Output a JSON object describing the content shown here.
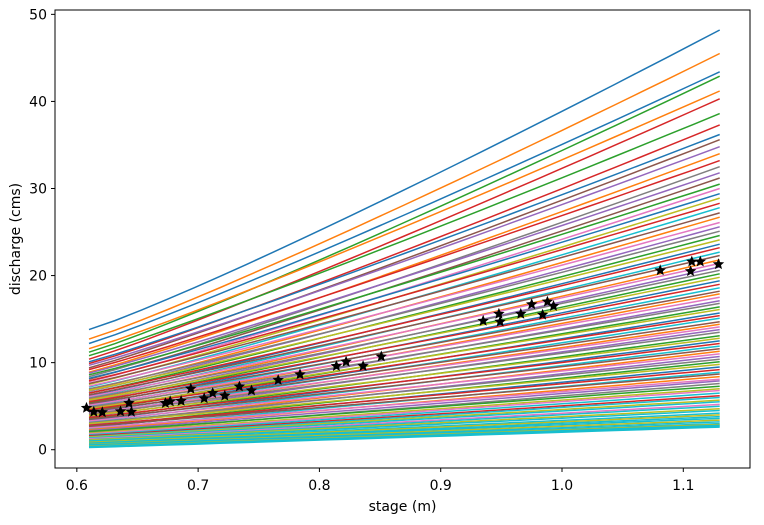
{
  "figure": {
    "xlabel": "stage (m)",
    "ylabel": "discharge (cms)",
    "background": "#ffffff"
  },
  "chart_data": {
    "type": "line",
    "title": "",
    "xlabel": "stage (m)",
    "ylabel": "discharge (cms)",
    "xlim": [
      0.582,
      1.155
    ],
    "ylim": [
      -2.1,
      50.5
    ],
    "x_ticks": [
      "0.6",
      "0.7",
      "0.8",
      "0.9",
      "1.0",
      "1.1"
    ],
    "x_tick_values": [
      0.6,
      0.7,
      0.8,
      0.9,
      1.0,
      1.1
    ],
    "y_ticks": [
      "0",
      "10",
      "20",
      "30",
      "40",
      "50"
    ],
    "y_tick_values": [
      0,
      10,
      20,
      30,
      40,
      50
    ],
    "grid": false,
    "legend": "none",
    "box": true,
    "line_width": 1.5,
    "palette": [
      "#1f77b4",
      "#ff7f0e",
      "#2ca02c",
      "#d62728",
      "#9467bd",
      "#8c564b",
      "#e377c2",
      "#7f7f7f",
      "#bcbd22",
      "#17becf"
    ],
    "curve_x_range": [
      0.61,
      1.13
    ],
    "curves_format": [
      "q_at_stage_0.61",
      "q_at_stage_1.13",
      "bend_exponent",
      "color_index"
    ],
    "curves": [
      [
        13.8,
        48.2,
        1.1,
        0
      ],
      [
        12.7,
        45.5,
        1.09,
        1
      ],
      [
        12.2,
        43.4,
        1.08,
        0
      ],
      [
        11.2,
        42.9,
        1.09,
        2
      ],
      [
        11.6,
        41.2,
        1.08,
        1
      ],
      [
        10.4,
        40.3,
        1.08,
        3
      ],
      [
        10.8,
        38.6,
        1.07,
        2
      ],
      [
        9.9,
        37.3,
        1.08,
        3
      ],
      [
        10.1,
        36.2,
        1.07,
        0
      ],
      [
        9.4,
        35.6,
        1.07,
        5
      ],
      [
        9.7,
        34.8,
        1.07,
        4
      ],
      [
        8.9,
        34.0,
        1.07,
        1
      ],
      [
        9.2,
        33.2,
        1.06,
        3
      ],
      [
        8.4,
        32.5,
        1.07,
        7
      ],
      [
        8.8,
        31.8,
        1.06,
        4
      ],
      [
        8.1,
        31.2,
        1.06,
        5
      ],
      [
        8.6,
        30.5,
        1.06,
        2
      ],
      [
        7.8,
        30.0,
        1.06,
        6
      ],
      [
        8.2,
        29.4,
        1.06,
        0
      ],
      [
        7.5,
        28.9,
        1.06,
        8
      ],
      [
        7.9,
        28.3,
        1.05,
        3
      ],
      [
        7.2,
        27.8,
        1.06,
        9
      ],
      [
        7.6,
        27.2,
        1.05,
        5
      ],
      [
        6.9,
        26.7,
        1.06,
        1
      ],
      [
        7.3,
        26.1,
        1.05,
        6
      ],
      [
        6.7,
        25.6,
        1.05,
        4
      ],
      [
        7.0,
        25.1,
        1.05,
        7
      ],
      [
        6.5,
        24.6,
        1.05,
        2
      ],
      [
        6.8,
        24.1,
        1.05,
        8
      ],
      [
        6.2,
        23.6,
        1.05,
        0
      ],
      [
        6.5,
        23.2,
        1.05,
        3
      ],
      [
        6.0,
        22.7,
        1.05,
        9
      ],
      [
        6.3,
        22.3,
        1.04,
        5
      ],
      [
        5.8,
        21.8,
        1.05,
        1
      ],
      [
        6.1,
        21.4,
        1.04,
        6
      ],
      [
        5.6,
        21.0,
        1.05,
        4
      ],
      [
        5.9,
        20.6,
        1.04,
        7
      ],
      [
        5.4,
        20.2,
        1.04,
        2
      ],
      [
        5.7,
        19.8,
        1.04,
        8
      ],
      [
        5.2,
        19.4,
        1.04,
        0
      ],
      [
        5.5,
        19.0,
        1.04,
        3
      ],
      [
        5.0,
        18.6,
        1.04,
        9
      ],
      [
        5.3,
        18.2,
        1.04,
        5
      ],
      [
        4.8,
        17.9,
        1.04,
        1
      ],
      [
        5.1,
        17.5,
        1.04,
        6
      ],
      [
        4.6,
        17.1,
        1.04,
        4
      ],
      [
        4.9,
        16.8,
        1.03,
        7
      ],
      [
        4.5,
        16.4,
        1.04,
        2
      ],
      [
        4.7,
        16.1,
        1.03,
        8
      ],
      [
        4.3,
        15.7,
        1.04,
        0
      ],
      [
        4.6,
        15.4,
        1.03,
        3
      ],
      [
        4.1,
        15.1,
        1.03,
        9
      ],
      [
        4.4,
        14.7,
        1.03,
        5
      ],
      [
        4.0,
        14.4,
        1.03,
        1
      ],
      [
        4.2,
        14.1,
        1.03,
        6
      ],
      [
        3.8,
        13.8,
        1.03,
        4
      ],
      [
        4.1,
        13.5,
        1.03,
        7
      ],
      [
        3.6,
        13.1,
        1.03,
        2
      ],
      [
        3.9,
        12.8,
        1.03,
        8
      ],
      [
        3.4,
        12.5,
        1.03,
        0
      ],
      [
        3.7,
        12.2,
        1.03,
        3
      ],
      [
        3.2,
        11.9,
        1.03,
        9
      ],
      [
        3.5,
        11.6,
        1.02,
        5
      ],
      [
        3.0,
        11.3,
        1.03,
        1
      ],
      [
        3.3,
        11.0,
        1.02,
        6
      ],
      [
        2.9,
        10.7,
        1.02,
        4
      ],
      [
        3.1,
        10.4,
        1.02,
        7
      ],
      [
        2.7,
        10.1,
        1.02,
        2
      ],
      [
        3.0,
        9.8,
        1.02,
        8
      ],
      [
        2.6,
        9.5,
        1.02,
        0
      ],
      [
        2.8,
        9.2,
        1.02,
        3
      ],
      [
        2.4,
        8.9,
        1.02,
        9
      ],
      [
        2.7,
        8.7,
        1.02,
        5
      ],
      [
        2.3,
        8.4,
        1.02,
        1
      ],
      [
        2.5,
        8.1,
        1.02,
        6
      ],
      [
        2.2,
        7.9,
        1.02,
        4
      ],
      [
        2.0,
        7.6,
        1.02,
        7
      ],
      [
        2.1,
        7.3,
        1.02,
        2
      ],
      [
        1.9,
        7.0,
        1.02,
        8
      ],
      [
        1.8,
        6.8,
        1.02,
        6
      ],
      [
        1.7,
        6.5,
        1.02,
        9
      ],
      [
        1.6,
        6.2,
        1.02,
        3
      ],
      [
        1.5,
        6.0,
        1.02,
        9
      ],
      [
        1.45,
        5.7,
        1.02,
        8
      ],
      [
        1.35,
        5.5,
        1.02,
        9
      ],
      [
        1.25,
        5.2,
        1.02,
        6
      ],
      [
        1.15,
        5.0,
        1.02,
        9
      ],
      [
        1.1,
        4.7,
        1.01,
        8
      ],
      [
        1.0,
        4.5,
        1.01,
        9
      ],
      [
        0.9,
        4.2,
        1.01,
        9
      ],
      [
        0.85,
        4.0,
        1.01,
        8
      ],
      [
        0.75,
        3.8,
        1.01,
        9
      ],
      [
        0.7,
        3.6,
        1.01,
        9
      ],
      [
        0.6,
        3.4,
        1.01,
        8
      ],
      [
        0.55,
        3.2,
        1.01,
        9
      ],
      [
        0.5,
        3.0,
        1.01,
        9
      ],
      [
        0.4,
        2.9,
        1.01,
        8
      ],
      [
        0.35,
        2.8,
        1.01,
        9
      ],
      [
        0.3,
        2.7,
        1.01,
        9
      ],
      [
        0.25,
        2.6,
        1.01,
        9
      ]
    ],
    "observations": {
      "marker": "star",
      "color": "#000000",
      "points": [
        [
          0.608,
          4.8
        ],
        [
          0.614,
          4.35
        ],
        [
          0.621,
          4.3
        ],
        [
          0.636,
          4.4
        ],
        [
          0.643,
          5.35
        ],
        [
          0.645,
          4.35
        ],
        [
          0.673,
          5.35
        ],
        [
          0.677,
          5.55
        ],
        [
          0.686,
          5.6
        ],
        [
          0.694,
          7.0
        ],
        [
          0.705,
          5.9
        ],
        [
          0.712,
          6.5
        ],
        [
          0.722,
          6.2
        ],
        [
          0.734,
          7.25
        ],
        [
          0.744,
          6.8
        ],
        [
          0.766,
          8.0
        ],
        [
          0.784,
          8.65
        ],
        [
          0.814,
          9.6
        ],
        [
          0.822,
          10.1
        ],
        [
          0.836,
          9.6
        ],
        [
          0.851,
          10.7
        ],
        [
          0.935,
          14.8
        ],
        [
          0.948,
          15.6
        ],
        [
          0.949,
          14.7
        ],
        [
          0.966,
          15.6
        ],
        [
          0.975,
          16.7
        ],
        [
          0.984,
          15.5
        ],
        [
          0.988,
          17.0
        ],
        [
          0.993,
          16.5
        ],
        [
          1.081,
          20.6
        ],
        [
          1.106,
          20.5
        ],
        [
          1.107,
          21.6
        ],
        [
          1.114,
          21.6
        ],
        [
          1.129,
          21.3
        ]
      ]
    }
  }
}
